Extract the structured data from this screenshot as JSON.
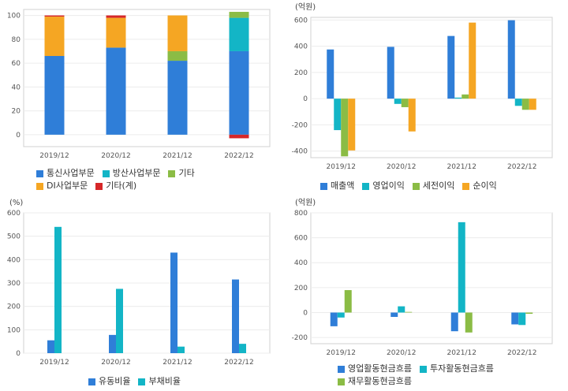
{
  "chart_data": [
    {
      "type": "bar",
      "stacked": true,
      "unit": "",
      "categories": [
        "2019/12",
        "2020/12",
        "2021/12",
        "2022/12"
      ],
      "ylim": [
        -10,
        105
      ],
      "yticks": [
        0,
        20,
        40,
        60,
        80,
        100
      ],
      "grid": true,
      "legend_position": "bottom",
      "legend_rows": [
        [
          0,
          1,
          2
        ],
        [
          3,
          4
        ]
      ],
      "series": [
        {
          "name": "통신사업부문",
          "color": "#2f7ed8",
          "values": [
            66,
            73,
            62,
            70
          ]
        },
        {
          "name": "방산사업부문",
          "color": "#13b5c6",
          "values": [
            0,
            0,
            0,
            28
          ]
        },
        {
          "name": "기타",
          "color": "#8bbc45",
          "values": [
            0,
            0,
            8,
            5
          ]
        },
        {
          "name": "DI사업부문",
          "color": "#f5a623",
          "values": [
            33,
            25,
            30,
            0
          ]
        },
        {
          "name": "기타(계)",
          "color": "#d62728",
          "values": [
            1,
            2,
            0,
            -3
          ]
        }
      ]
    },
    {
      "type": "bar",
      "stacked": false,
      "unit": "(억원)",
      "categories": [
        "2019/12",
        "2020/12",
        "2021/12",
        "2022/12"
      ],
      "ylim": [
        -450,
        620
      ],
      "yticks": [
        -400,
        -200,
        0,
        200,
        400,
        600
      ],
      "grid": true,
      "legend_position": "bottom",
      "legend_rows": [
        [
          0,
          1,
          2,
          3
        ]
      ],
      "series": [
        {
          "name": "매출액",
          "color": "#2f7ed8",
          "values": [
            375,
            395,
            478,
            598
          ]
        },
        {
          "name": "영업이익",
          "color": "#13b5c6",
          "values": [
            -240,
            -40,
            8,
            -55
          ]
        },
        {
          "name": "세전이익",
          "color": "#8bbc45",
          "values": [
            -440,
            -65,
            32,
            -85
          ]
        },
        {
          "name": "순이익",
          "color": "#f5a623",
          "values": [
            -395,
            -250,
            580,
            -85
          ]
        }
      ]
    },
    {
      "type": "bar",
      "stacked": false,
      "unit": "(%)",
      "categories": [
        "2019/12",
        "2020/12",
        "2021/12",
        "2022/12"
      ],
      "ylim": [
        0,
        600
      ],
      "yticks": [
        0,
        100,
        200,
        300,
        400,
        500,
        600
      ],
      "grid": true,
      "legend_position": "bottom",
      "legend_rows": [
        [
          0,
          1
        ]
      ],
      "series": [
        {
          "name": "유동비율",
          "color": "#2f7ed8",
          "values": [
            55,
            78,
            430,
            315
          ]
        },
        {
          "name": "부채비율",
          "color": "#13b5c6",
          "values": [
            540,
            275,
            28,
            40
          ]
        }
      ]
    },
    {
      "type": "bar",
      "stacked": false,
      "unit": "(억원)",
      "categories": [
        "2019/12",
        "2020/12",
        "2021/12",
        "2022/12"
      ],
      "ylim": [
        -250,
        800
      ],
      "yticks": [
        -200,
        0,
        200,
        400,
        600,
        800
      ],
      "grid": true,
      "legend_position": "bottom",
      "legend_rows": [
        [
          0,
          1
        ],
        [
          2
        ]
      ],
      "series": [
        {
          "name": "영업활동현금흐름",
          "color": "#2f7ed8",
          "values": [
            -110,
            -35,
            -150,
            -95
          ]
        },
        {
          "name": "투자활동현금흐름",
          "color": "#13b5c6",
          "values": [
            -40,
            50,
            725,
            -100
          ]
        },
        {
          "name": "재무활동현금흐름",
          "color": "#8bbc45",
          "values": [
            180,
            5,
            -160,
            -10
          ]
        }
      ]
    }
  ]
}
